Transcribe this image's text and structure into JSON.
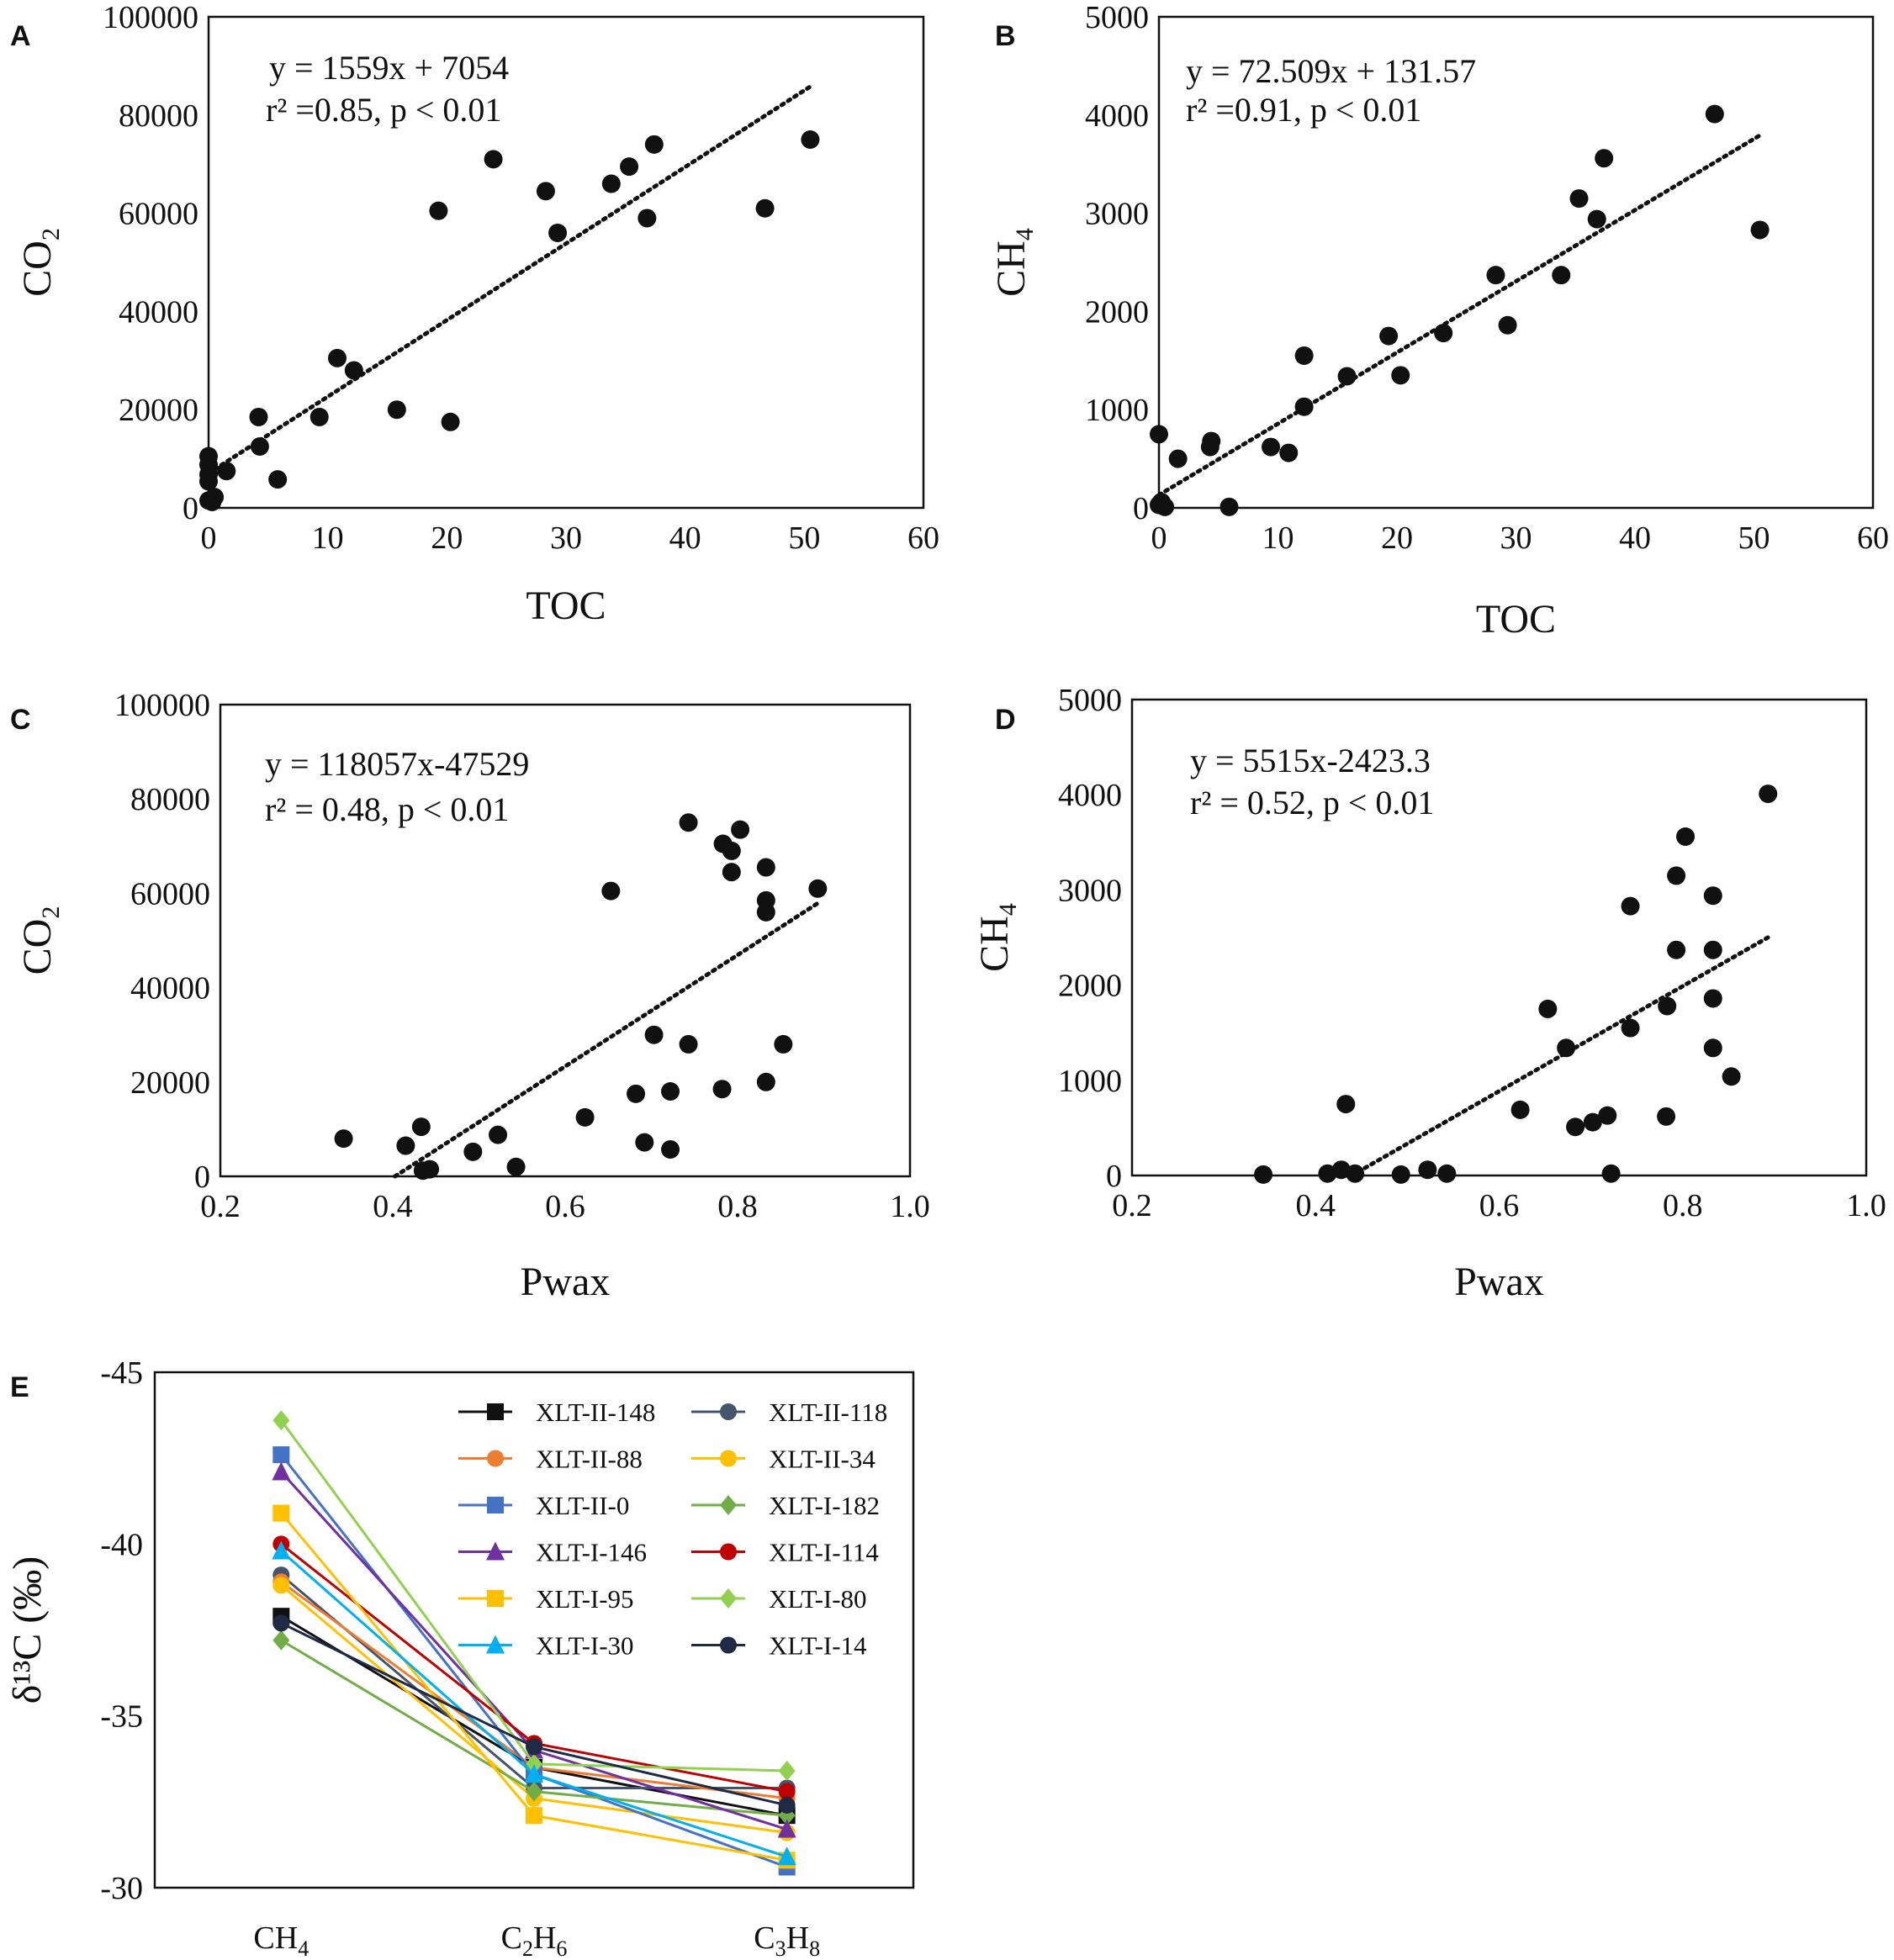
{
  "chart_data": [
    {
      "panel": "A",
      "type": "scatter",
      "xlabel": "TOC",
      "ylabel": "CO",
      "ylabel_sub": "2",
      "xlim": [
        0,
        60
      ],
      "ylim": [
        0,
        100000
      ],
      "xticks": [
        0,
        10,
        20,
        30,
        40,
        50,
        60
      ],
      "yticks": [
        0,
        20000,
        40000,
        60000,
        80000,
        100000
      ],
      "equation": "y = 1559x + 7054",
      "stats": "r² =0.85, p < 0.01",
      "trend": {
        "slope": 1559,
        "intercept": 7054,
        "x_range": [
          0,
          50.5
        ]
      },
      "points": [
        [
          0,
          10500
        ],
        [
          0,
          8800
        ],
        [
          0,
          6800
        ],
        [
          0,
          5400
        ],
        [
          0,
          1500
        ],
        [
          0.3,
          1200
        ],
        [
          0.5,
          2200
        ],
        [
          1.5,
          7500
        ],
        [
          4.2,
          18500
        ],
        [
          4.3,
          12500
        ],
        [
          5.8,
          5800
        ],
        [
          9.3,
          18500
        ],
        [
          10.8,
          30500
        ],
        [
          12.2,
          28000
        ],
        [
          15.8,
          20000
        ],
        [
          19.3,
          60500
        ],
        [
          20.3,
          17500
        ],
        [
          23.9,
          71000
        ],
        [
          28.3,
          64500
        ],
        [
          29.3,
          56000
        ],
        [
          33.8,
          66000
        ],
        [
          35.3,
          69500
        ],
        [
          36.8,
          59000
        ],
        [
          37.4,
          74000
        ],
        [
          46.7,
          61000
        ],
        [
          50.5,
          75000
        ]
      ]
    },
    {
      "panel": "B",
      "type": "scatter",
      "xlabel": "TOC",
      "ylabel": "CH",
      "ylabel_sub": "4",
      "xlim": [
        0,
        60
      ],
      "ylim": [
        0,
        5000
      ],
      "xticks": [
        0,
        10,
        20,
        30,
        40,
        50,
        60
      ],
      "yticks": [
        0,
        1000,
        2000,
        3000,
        4000,
        5000
      ],
      "equation": "y = 72.509x + 131.57",
      "stats": "r² =0.91, p < 0.01",
      "trend": {
        "slope": 72.509,
        "intercept": 131.57,
        "x_range": [
          0,
          50.5
        ]
      },
      "points": [
        [
          0,
          750
        ],
        [
          0,
          30
        ],
        [
          0.2,
          60
        ],
        [
          0.5,
          10
        ],
        [
          1.6,
          500
        ],
        [
          4.3,
          620
        ],
        [
          4.4,
          680
        ],
        [
          5.9,
          10
        ],
        [
          9.4,
          620
        ],
        [
          10.9,
          560
        ],
        [
          12.2,
          1550
        ],
        [
          12.2,
          1030
        ],
        [
          15.8,
          1340
        ],
        [
          19.3,
          1750
        ],
        [
          20.3,
          1350
        ],
        [
          23.9,
          1780
        ],
        [
          28.3,
          2370
        ],
        [
          29.3,
          1860
        ],
        [
          33.8,
          2370
        ],
        [
          35.3,
          3150
        ],
        [
          36.8,
          2940
        ],
        [
          37.4,
          3560
        ],
        [
          46.7,
          4010
        ],
        [
          50.5,
          2830
        ]
      ]
    },
    {
      "panel": "C",
      "type": "scatter",
      "xlabel": "Pwax",
      "ylabel": "CO",
      "ylabel_sub": "2",
      "xlim": [
        0.2,
        1.0
      ],
      "ylim": [
        0,
        100000
      ],
      "xticks": [
        "0.2",
        "0.4",
        "0.6",
        "0.8",
        "1.0"
      ],
      "yticks": [
        0,
        20000,
        40000,
        60000,
        80000,
        100000
      ],
      "equation": "y = 118057x-47529",
      "stats": "r² = 0.48, p < 0.01",
      "trend": {
        "slope": 118057,
        "intercept": -47529,
        "x_range": [
          0.4026,
          0.895
        ]
      },
      "points": [
        [
          0.343,
          8000
        ],
        [
          0.415,
          6500
        ],
        [
          0.433,
          10500
        ],
        [
          0.435,
          1200
        ],
        [
          0.443,
          1500
        ],
        [
          0.493,
          5200
        ],
        [
          0.522,
          8800
        ],
        [
          0.543,
          2000
        ],
        [
          0.623,
          12500
        ],
        [
          0.653,
          60500
        ],
        [
          0.682,
          17500
        ],
        [
          0.692,
          7200
        ],
        [
          0.703,
          30000
        ],
        [
          0.722,
          18000
        ],
        [
          0.722,
          5700
        ],
        [
          0.743,
          75000
        ],
        [
          0.743,
          28000
        ],
        [
          0.782,
          18500
        ],
        [
          0.783,
          70500
        ],
        [
          0.793,
          69000
        ],
        [
          0.793,
          64500
        ],
        [
          0.803,
          73500
        ],
        [
          0.833,
          65500
        ],
        [
          0.833,
          58500
        ],
        [
          0.833,
          56000
        ],
        [
          0.833,
          20000
        ],
        [
          0.853,
          28000
        ],
        [
          0.893,
          61000
        ]
      ]
    },
    {
      "panel": "D",
      "type": "scatter",
      "xlabel": "Pwax",
      "ylabel": "CH",
      "ylabel_sub": "4",
      "xlim": [
        0.2,
        1.0
      ],
      "ylim": [
        0,
        5000
      ],
      "xticks": [
        "0.2",
        "0.4",
        "0.6",
        "0.8",
        "1.0"
      ],
      "yticks": [
        0,
        1000,
        2000,
        3000,
        4000,
        5000
      ],
      "equation": "y = 5515x-2423.3",
      "stats": "r² = 0.52, p < 0.01",
      "trend": {
        "slope": 5515,
        "intercept": -2423.3,
        "x_range": [
          0.4394,
          0.893
        ]
      },
      "points": [
        [
          0.343,
          10
        ],
        [
          0.413,
          20
        ],
        [
          0.433,
          750
        ],
        [
          0.428,
          60
        ],
        [
          0.443,
          20
        ],
        [
          0.493,
          10
        ],
        [
          0.522,
          60
        ],
        [
          0.543,
          20
        ],
        [
          0.623,
          690
        ],
        [
          0.653,
          1750
        ],
        [
          0.673,
          1340
        ],
        [
          0.683,
          510
        ],
        [
          0.702,
          560
        ],
        [
          0.718,
          630
        ],
        [
          0.722,
          20
        ],
        [
          0.743,
          2830
        ],
        [
          0.743,
          1550
        ],
        [
          0.782,
          620
        ],
        [
          0.783,
          1780
        ],
        [
          0.793,
          3150
        ],
        [
          0.793,
          2370
        ],
        [
          0.803,
          3560
        ],
        [
          0.833,
          2940
        ],
        [
          0.833,
          2370
        ],
        [
          0.833,
          1860
        ],
        [
          0.833,
          1340
        ],
        [
          0.853,
          1040
        ],
        [
          0.893,
          4010
        ]
      ]
    },
    {
      "panel": "E",
      "type": "line",
      "ylabel": "δ¹³C (‰)",
      "categories": [
        {
          "base": "CH",
          "sub": "4",
          "tail": "",
          "tail2": ""
        },
        {
          "base": "C",
          "sub": "2",
          "tail": "H",
          "tail2": "6"
        },
        {
          "base": "C",
          "sub": "3",
          "tail": "H",
          "tail2": "8"
        }
      ],
      "ylim": [
        -45,
        -30
      ],
      "y_reversed": true,
      "yticks": [
        "-45",
        "-40",
        "-35",
        "-30"
      ],
      "series": [
        {
          "name": "XLT-II-148",
          "color": "#111111",
          "marker": "square",
          "values": [
            -37.9,
            -33.5,
            -32.1
          ]
        },
        {
          "name": "XLT-II-118",
          "color": "#44546A",
          "marker": "circle",
          "values": [
            -39.1,
            -32.9,
            -32.9
          ]
        },
        {
          "name": "XLT-II-88",
          "color": "#ED7D31",
          "marker": "circle",
          "values": [
            -38.9,
            -33.5,
            -32.6
          ]
        },
        {
          "name": "XLT-II-34",
          "color": "#FFC000",
          "marker": "circle",
          "values": [
            -38.8,
            -32.6,
            -31.6
          ]
        },
        {
          "name": "XLT-II-0",
          "color": "#4472C4",
          "marker": "square",
          "values": [
            -42.6,
            -33.3,
            -30.6
          ]
        },
        {
          "name": "XLT-I-182",
          "color": "#70AD47",
          "marker": "diamond",
          "values": [
            -37.2,
            -32.8,
            -32.1
          ]
        },
        {
          "name": "XLT-I-146",
          "color": "#7030A0",
          "marker": "triangle",
          "values": [
            -42.1,
            -34.0,
            -31.7
          ]
        },
        {
          "name": "XLT-I-114",
          "color": "#C00000",
          "marker": "circle",
          "values": [
            -40.0,
            -34.2,
            -32.8
          ]
        },
        {
          "name": "XLT-I-95",
          "color": "#FFC000",
          "marker": "square",
          "values": [
            -40.9,
            -32.1,
            -30.8
          ]
        },
        {
          "name": "XLT-I-80",
          "color": "#92D050",
          "marker": "diamond",
          "values": [
            -43.6,
            -33.6,
            -33.4
          ]
        },
        {
          "name": "XLT-I-30",
          "color": "#00B0F0",
          "marker": "triangle",
          "values": [
            -39.8,
            -33.3,
            -30.9
          ]
        },
        {
          "name": "XLT-I-14",
          "color": "#1F2A44",
          "marker": "circle",
          "values": [
            -37.7,
            -34.1,
            -32.4
          ]
        }
      ]
    }
  ]
}
